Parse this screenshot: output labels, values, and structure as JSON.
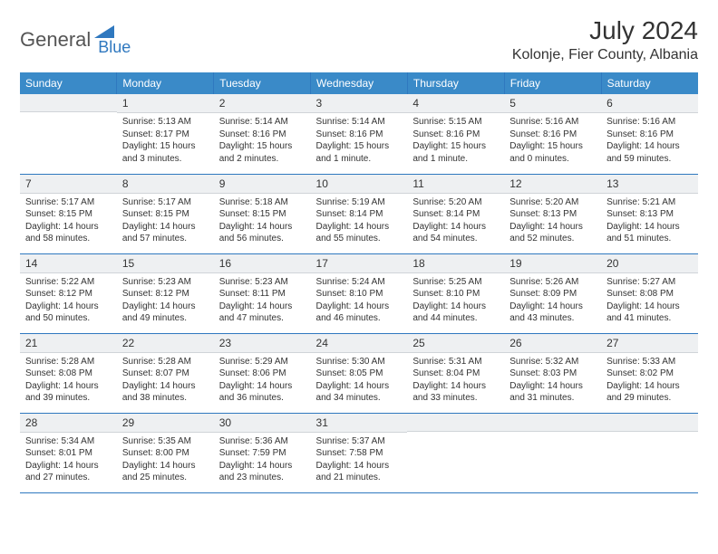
{
  "brand": {
    "part1": "General",
    "part2": "Blue"
  },
  "title": "July 2024",
  "location": "Kolonje, Fier County, Albania",
  "colors": {
    "accent": "#3a8ac8",
    "border": "#2f78bf",
    "numBg": "#eef0f2",
    "text": "#333333"
  },
  "dow": [
    "Sunday",
    "Monday",
    "Tuesday",
    "Wednesday",
    "Thursday",
    "Friday",
    "Saturday"
  ],
  "weeks": [
    [
      null,
      {
        "n": "1",
        "sr": "Sunrise: 5:13 AM",
        "ss": "Sunset: 8:17 PM",
        "dl": "Daylight: 15 hours and 3 minutes."
      },
      {
        "n": "2",
        "sr": "Sunrise: 5:14 AM",
        "ss": "Sunset: 8:16 PM",
        "dl": "Daylight: 15 hours and 2 minutes."
      },
      {
        "n": "3",
        "sr": "Sunrise: 5:14 AM",
        "ss": "Sunset: 8:16 PM",
        "dl": "Daylight: 15 hours and 1 minute."
      },
      {
        "n": "4",
        "sr": "Sunrise: 5:15 AM",
        "ss": "Sunset: 8:16 PM",
        "dl": "Daylight: 15 hours and 1 minute."
      },
      {
        "n": "5",
        "sr": "Sunrise: 5:16 AM",
        "ss": "Sunset: 8:16 PM",
        "dl": "Daylight: 15 hours and 0 minutes."
      },
      {
        "n": "6",
        "sr": "Sunrise: 5:16 AM",
        "ss": "Sunset: 8:16 PM",
        "dl": "Daylight: 14 hours and 59 minutes."
      }
    ],
    [
      {
        "n": "7",
        "sr": "Sunrise: 5:17 AM",
        "ss": "Sunset: 8:15 PM",
        "dl": "Daylight: 14 hours and 58 minutes."
      },
      {
        "n": "8",
        "sr": "Sunrise: 5:17 AM",
        "ss": "Sunset: 8:15 PM",
        "dl": "Daylight: 14 hours and 57 minutes."
      },
      {
        "n": "9",
        "sr": "Sunrise: 5:18 AM",
        "ss": "Sunset: 8:15 PM",
        "dl": "Daylight: 14 hours and 56 minutes."
      },
      {
        "n": "10",
        "sr": "Sunrise: 5:19 AM",
        "ss": "Sunset: 8:14 PM",
        "dl": "Daylight: 14 hours and 55 minutes."
      },
      {
        "n": "11",
        "sr": "Sunrise: 5:20 AM",
        "ss": "Sunset: 8:14 PM",
        "dl": "Daylight: 14 hours and 54 minutes."
      },
      {
        "n": "12",
        "sr": "Sunrise: 5:20 AM",
        "ss": "Sunset: 8:13 PM",
        "dl": "Daylight: 14 hours and 52 minutes."
      },
      {
        "n": "13",
        "sr": "Sunrise: 5:21 AM",
        "ss": "Sunset: 8:13 PM",
        "dl": "Daylight: 14 hours and 51 minutes."
      }
    ],
    [
      {
        "n": "14",
        "sr": "Sunrise: 5:22 AM",
        "ss": "Sunset: 8:12 PM",
        "dl": "Daylight: 14 hours and 50 minutes."
      },
      {
        "n": "15",
        "sr": "Sunrise: 5:23 AM",
        "ss": "Sunset: 8:12 PM",
        "dl": "Daylight: 14 hours and 49 minutes."
      },
      {
        "n": "16",
        "sr": "Sunrise: 5:23 AM",
        "ss": "Sunset: 8:11 PM",
        "dl": "Daylight: 14 hours and 47 minutes."
      },
      {
        "n": "17",
        "sr": "Sunrise: 5:24 AM",
        "ss": "Sunset: 8:10 PM",
        "dl": "Daylight: 14 hours and 46 minutes."
      },
      {
        "n": "18",
        "sr": "Sunrise: 5:25 AM",
        "ss": "Sunset: 8:10 PM",
        "dl": "Daylight: 14 hours and 44 minutes."
      },
      {
        "n": "19",
        "sr": "Sunrise: 5:26 AM",
        "ss": "Sunset: 8:09 PM",
        "dl": "Daylight: 14 hours and 43 minutes."
      },
      {
        "n": "20",
        "sr": "Sunrise: 5:27 AM",
        "ss": "Sunset: 8:08 PM",
        "dl": "Daylight: 14 hours and 41 minutes."
      }
    ],
    [
      {
        "n": "21",
        "sr": "Sunrise: 5:28 AM",
        "ss": "Sunset: 8:08 PM",
        "dl": "Daylight: 14 hours and 39 minutes."
      },
      {
        "n": "22",
        "sr": "Sunrise: 5:28 AM",
        "ss": "Sunset: 8:07 PM",
        "dl": "Daylight: 14 hours and 38 minutes."
      },
      {
        "n": "23",
        "sr": "Sunrise: 5:29 AM",
        "ss": "Sunset: 8:06 PM",
        "dl": "Daylight: 14 hours and 36 minutes."
      },
      {
        "n": "24",
        "sr": "Sunrise: 5:30 AM",
        "ss": "Sunset: 8:05 PM",
        "dl": "Daylight: 14 hours and 34 minutes."
      },
      {
        "n": "25",
        "sr": "Sunrise: 5:31 AM",
        "ss": "Sunset: 8:04 PM",
        "dl": "Daylight: 14 hours and 33 minutes."
      },
      {
        "n": "26",
        "sr": "Sunrise: 5:32 AM",
        "ss": "Sunset: 8:03 PM",
        "dl": "Daylight: 14 hours and 31 minutes."
      },
      {
        "n": "27",
        "sr": "Sunrise: 5:33 AM",
        "ss": "Sunset: 8:02 PM",
        "dl": "Daylight: 14 hours and 29 minutes."
      }
    ],
    [
      {
        "n": "28",
        "sr": "Sunrise: 5:34 AM",
        "ss": "Sunset: 8:01 PM",
        "dl": "Daylight: 14 hours and 27 minutes."
      },
      {
        "n": "29",
        "sr": "Sunrise: 5:35 AM",
        "ss": "Sunset: 8:00 PM",
        "dl": "Daylight: 14 hours and 25 minutes."
      },
      {
        "n": "30",
        "sr": "Sunrise: 5:36 AM",
        "ss": "Sunset: 7:59 PM",
        "dl": "Daylight: 14 hours and 23 minutes."
      },
      {
        "n": "31",
        "sr": "Sunrise: 5:37 AM",
        "ss": "Sunset: 7:58 PM",
        "dl": "Daylight: 14 hours and 21 minutes."
      },
      null,
      null,
      null
    ]
  ]
}
